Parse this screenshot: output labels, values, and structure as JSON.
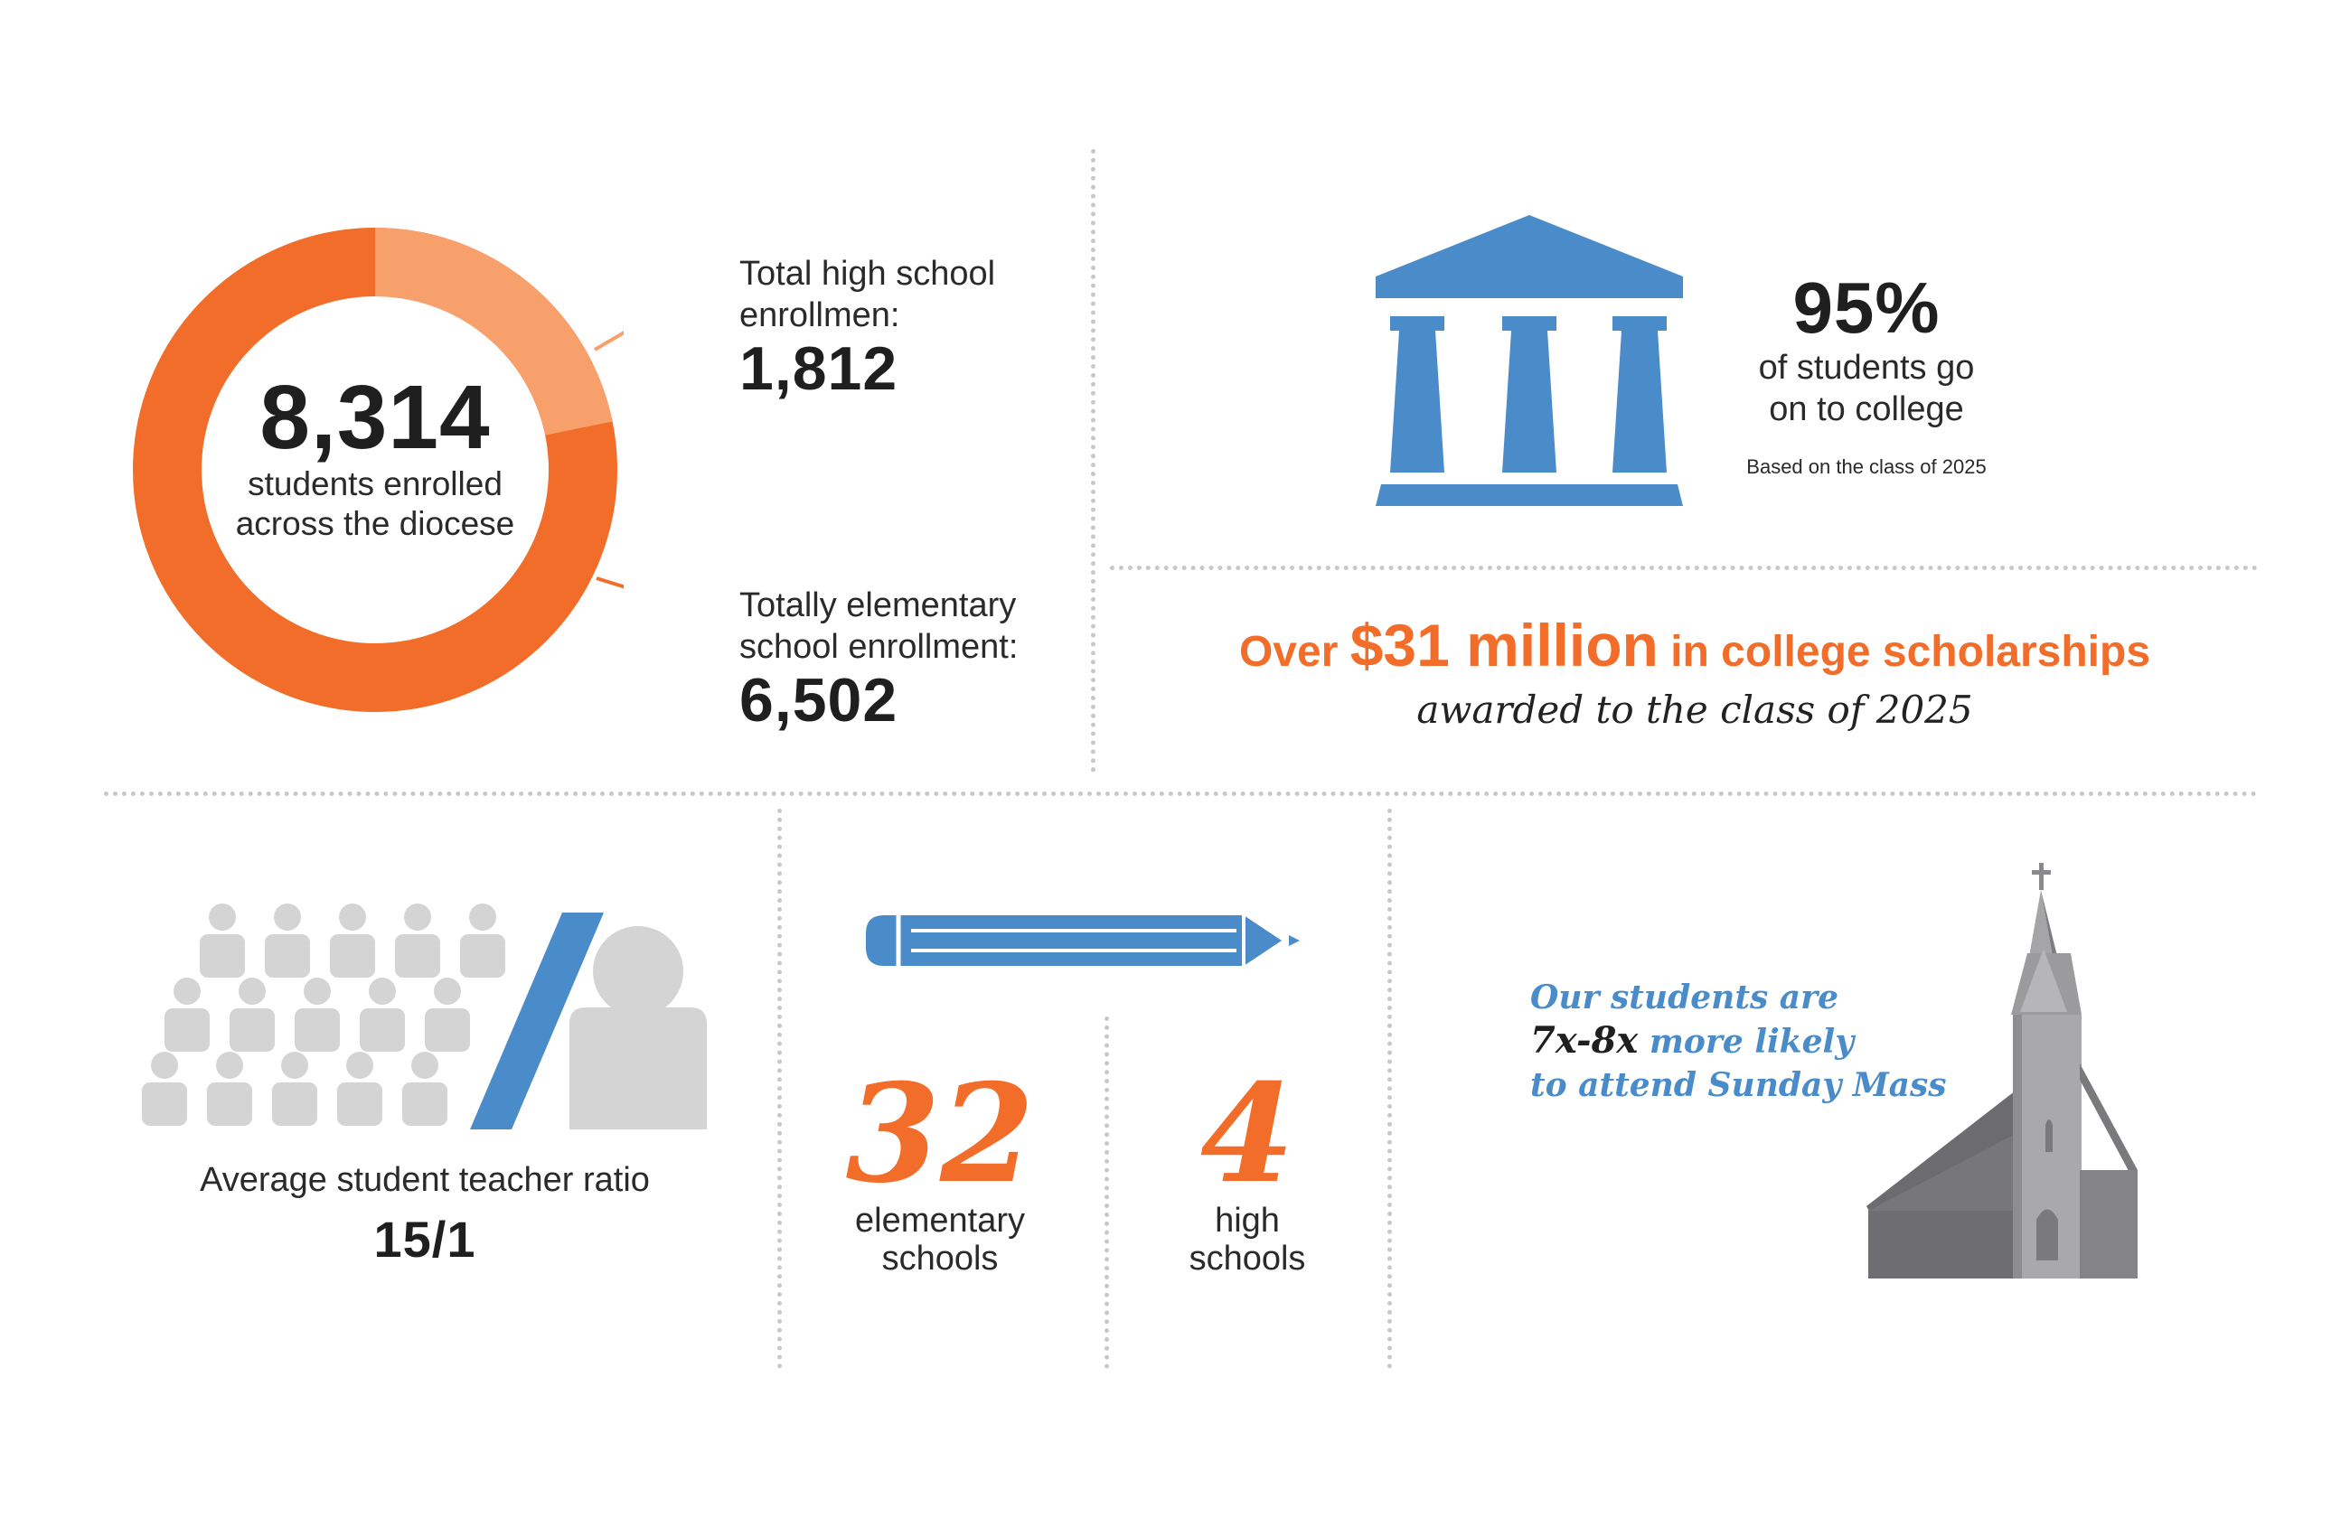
{
  "enrollment": {
    "total_number": "8,314",
    "total_caption_1": "students enrolled",
    "total_caption_2": "across the diocese",
    "high_school_share": 0.218,
    "high_school_label_1": "Total high school",
    "high_school_label_2": "enrollmen:",
    "high_school_value": "1,812",
    "elementary_label_1": "Totally elementary",
    "elementary_label_2": "school enrollment:",
    "elementary_value": "6,502",
    "colors": {
      "high_school": "#f7a06b",
      "elementary": "#f26d2a"
    }
  },
  "college": {
    "percent": "95%",
    "caption_1": "of students go",
    "caption_2": "on to college",
    "footnote": "Based on the class of 2025",
    "icon": "building-columns-icon",
    "icon_color": "#4a8bc9"
  },
  "scholarship": {
    "prefix": "Over",
    "amount": "$31 million",
    "suffix": "in college scholarships",
    "line2": "awarded to the class of 2025"
  },
  "ratio": {
    "label": "Average student teacher ratio",
    "value": "15/1",
    "icons": [
      "students-icon",
      "teacher-icon"
    ],
    "slash_color": "#4a8bc9"
  },
  "schools": {
    "icon": "pencil-icon",
    "elementary_count": "32",
    "elementary_label_1": "elementary",
    "elementary_label_2": "schools",
    "high_count": "4",
    "high_label_1": "high",
    "high_label_2": "schools"
  },
  "mass": {
    "line1": "Our students are",
    "line2_bold": "7x-8x",
    "line2_rest": "more likely",
    "line3": "to attend Sunday Mass",
    "icon": "church-icon"
  }
}
